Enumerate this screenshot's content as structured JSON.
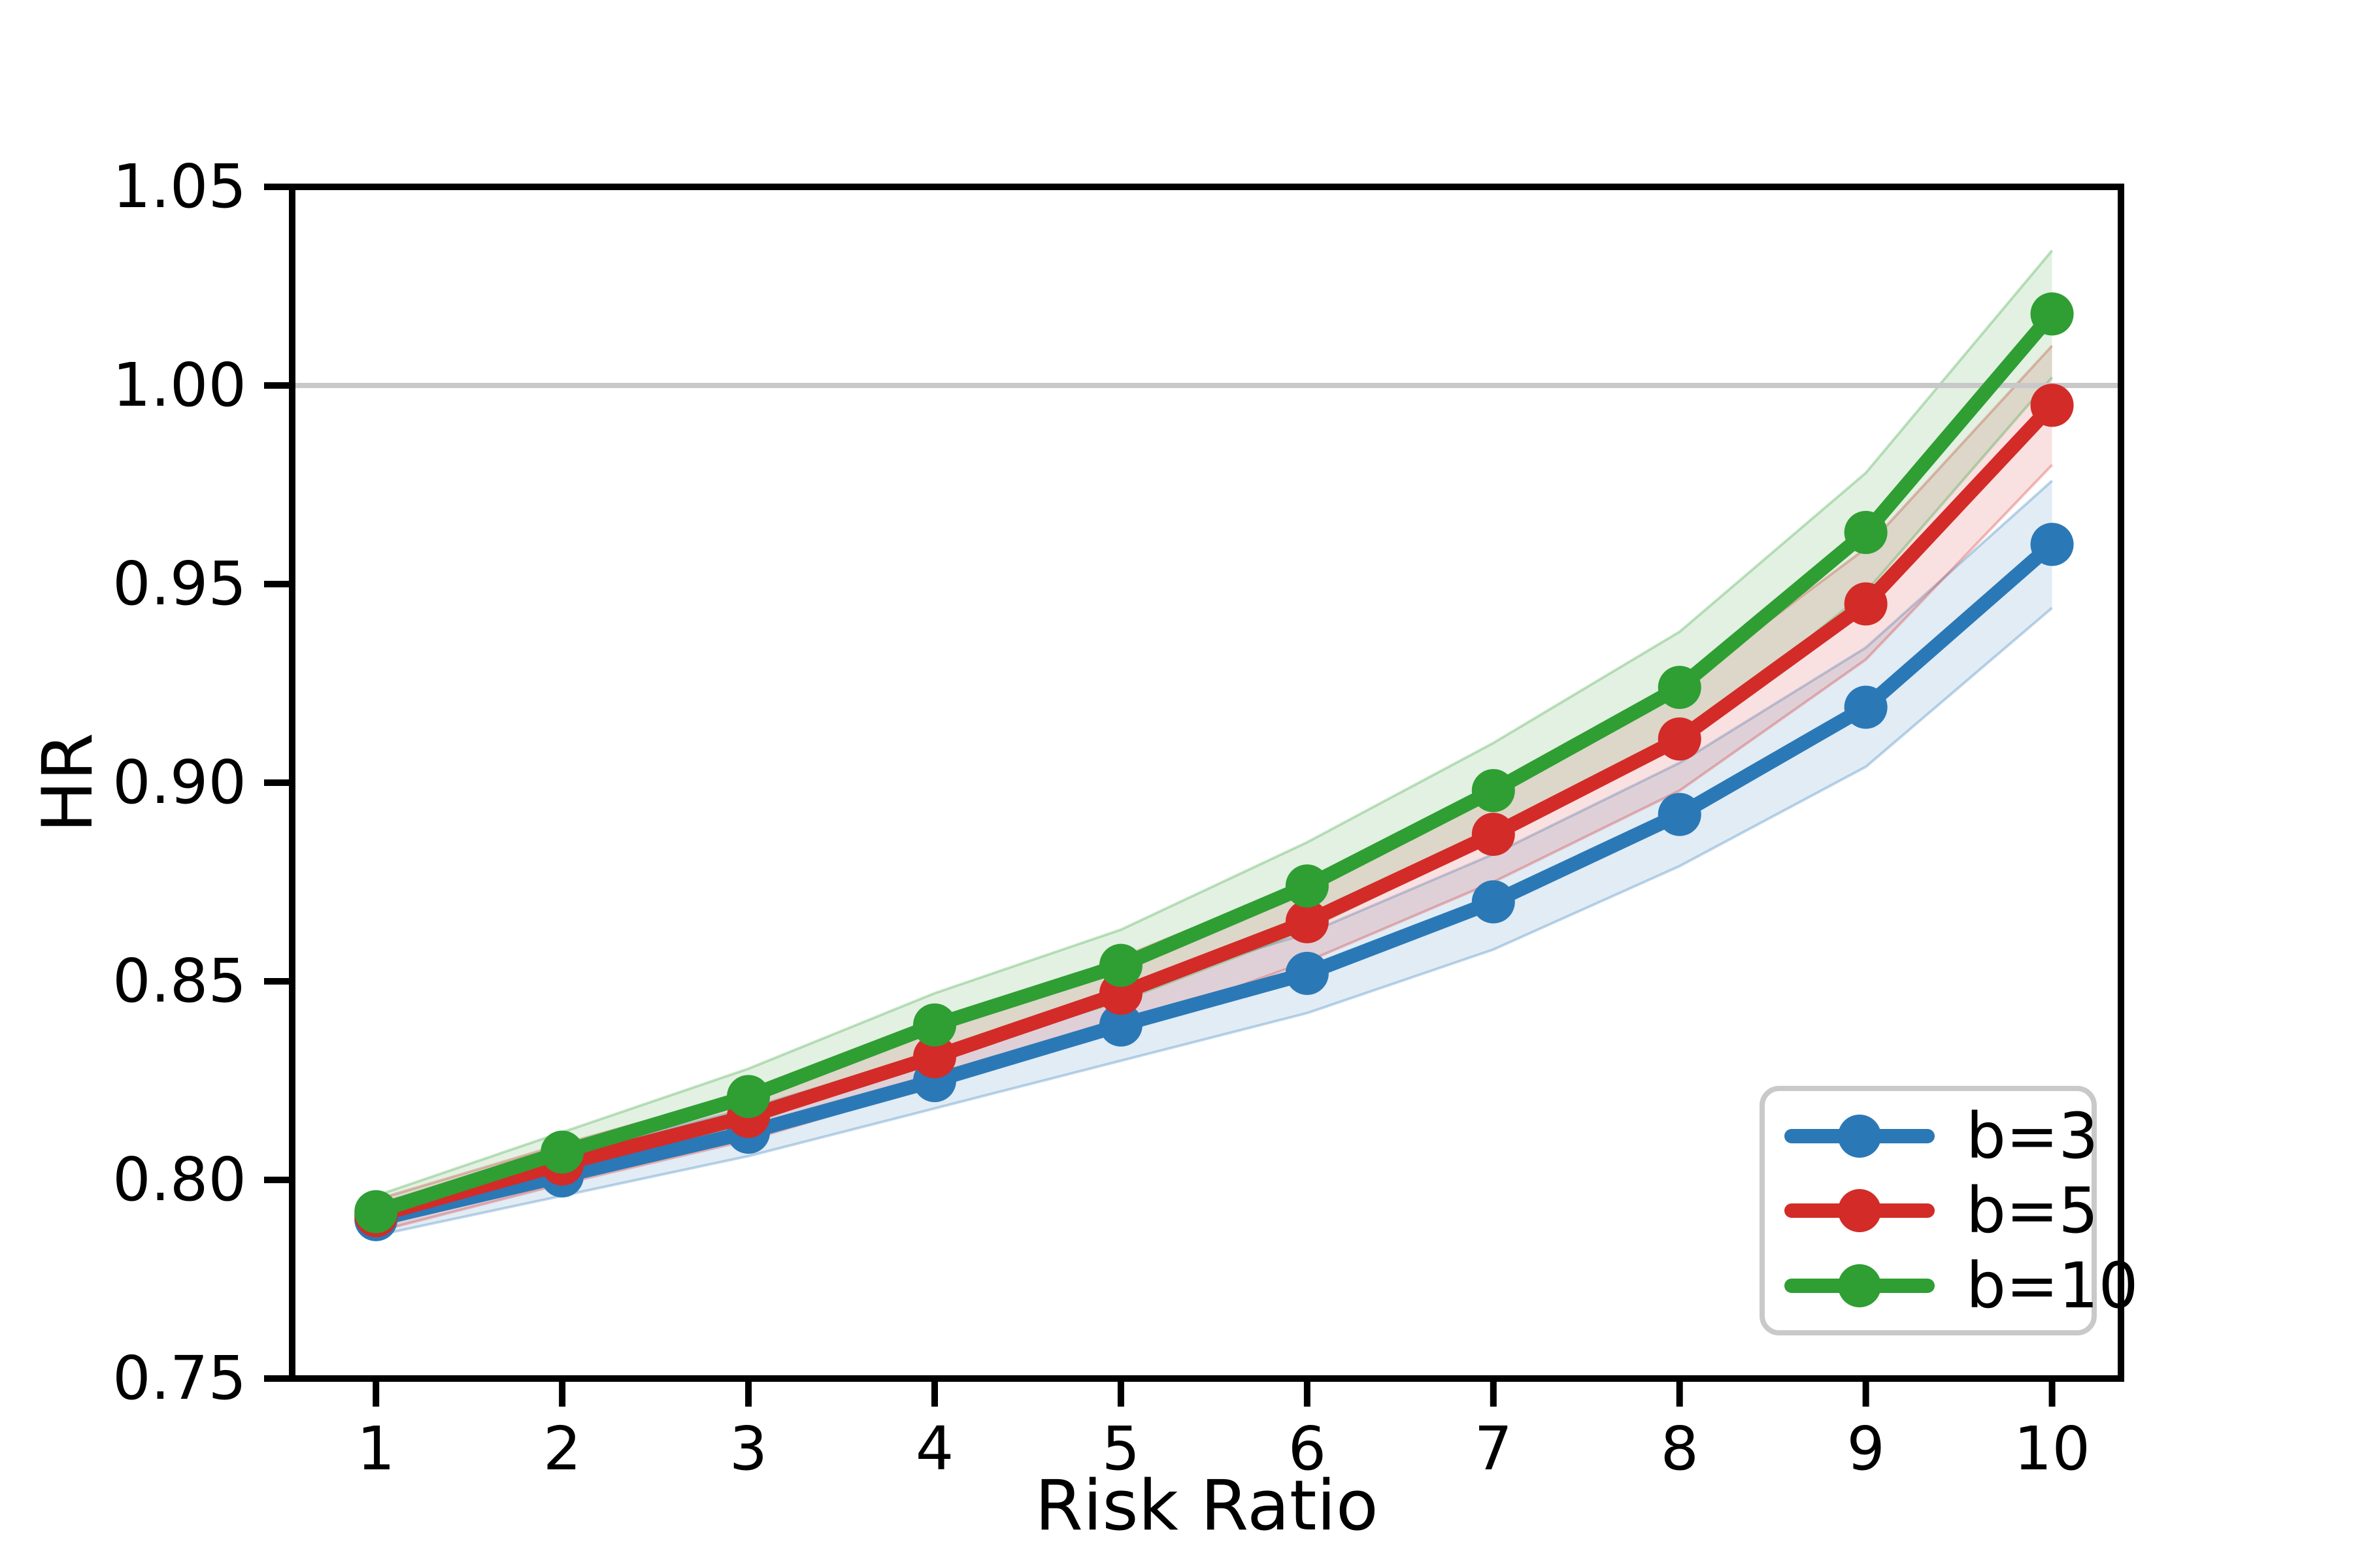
{
  "chart_data": {
    "type": "line",
    "xlabel": "Risk Ratio",
    "ylabel": "HR",
    "x": [
      1,
      2,
      3,
      4,
      5,
      6,
      7,
      8,
      9,
      10
    ],
    "xlim": [
      0.55,
      10.37
    ],
    "ylim": [
      0.75,
      1.05
    ],
    "xticks": [
      1,
      2,
      3,
      4,
      5,
      6,
      7,
      8,
      9,
      10
    ],
    "xticklabels": [
      "1",
      "2",
      "3",
      "4",
      "5",
      "6",
      "7",
      "8",
      "9",
      "10"
    ],
    "yticks": [
      0.75,
      0.8,
      0.85,
      0.9,
      0.95,
      1.0,
      1.05
    ],
    "yticklabels": [
      "0.75",
      "0.80",
      "0.85",
      "0.90",
      "0.95",
      "1.00",
      "1.05"
    ],
    "grid": false,
    "reference_line": {
      "y": 1.0,
      "color": "#c8c8c8"
    },
    "legend_position": "lower right",
    "band_fill_alpha": 0.14,
    "band_edge_alpha": 0.3,
    "series": [
      {
        "name": "b=3",
        "color": "#2b78b6",
        "values": [
          0.79,
          0.801,
          0.812,
          0.825,
          0.839,
          0.852,
          0.87,
          0.892,
          0.919,
          0.96
        ],
        "ci": [
          0.004,
          0.005,
          0.006,
          0.007,
          0.009,
          0.01,
          0.012,
          0.013,
          0.015,
          0.016
        ]
      },
      {
        "name": "b=5",
        "color": "#d32b28",
        "values": [
          0.791,
          0.804,
          0.816,
          0.831,
          0.847,
          0.865,
          0.887,
          0.911,
          0.945,
          0.995
        ],
        "ci": [
          0.004,
          0.005,
          0.006,
          0.007,
          0.009,
          0.01,
          0.012,
          0.013,
          0.014,
          0.015
        ]
      },
      {
        "name": "b=10",
        "color": "#2f9e33",
        "values": [
          0.792,
          0.807,
          0.821,
          0.839,
          0.854,
          0.874,
          0.898,
          0.924,
          0.963,
          1.018
        ],
        "ci": [
          0.004,
          0.005,
          0.007,
          0.008,
          0.009,
          0.011,
          0.012,
          0.014,
          0.015,
          0.016
        ]
      }
    ]
  }
}
